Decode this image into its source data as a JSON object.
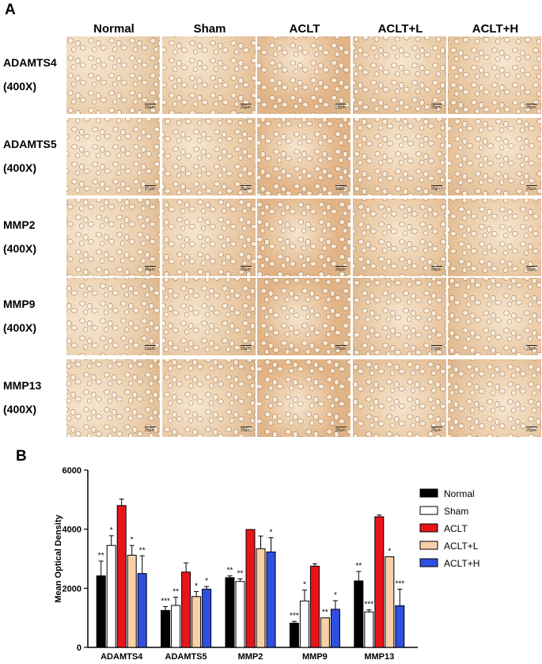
{
  "panel_a": {
    "letter": "A",
    "columns": [
      "Normal",
      "Sham",
      "ACLT",
      "ACLT+L",
      "ACLT+H"
    ],
    "rows": [
      {
        "name": "ADAMTS4",
        "mag": "(400X)"
      },
      {
        "name": "ADAMTS5",
        "mag": "(400X)"
      },
      {
        "name": "MMP2",
        "mag": "(400X)"
      },
      {
        "name": "MMP9",
        "mag": "(400X)"
      },
      {
        "name": "MMP13",
        "mag": "(400X)"
      }
    ],
    "scale_bar_label": "25μm"
  },
  "panel_b": {
    "letter": "B"
  },
  "chart_data": {
    "type": "bar",
    "ylabel": "Mean Optical Density",
    "xlabel": "",
    "ylim": [
      0,
      6000
    ],
    "yticks": [
      0,
      2000,
      4000,
      6000
    ],
    "categories": [
      "ADAMTS4",
      "ADAMTS5",
      "MMP2",
      "MMP9",
      "MMP13"
    ],
    "legend_position": "right",
    "series": [
      {
        "name": "Normal",
        "color": "#000000",
        "values": [
          2420,
          1250,
          2360,
          820,
          2250
        ],
        "errors": [
          500,
          130,
          60,
          60,
          320
        ],
        "annotations": [
          "**",
          "***",
          "**",
          "***",
          "**"
        ]
      },
      {
        "name": "Sham",
        "color": "#ffffff",
        "values": [
          3450,
          1420,
          2230,
          1570,
          1200
        ],
        "errors": [
          330,
          280,
          90,
          370,
          70
        ],
        "annotations": [
          "*",
          "**",
          "**",
          "*",
          "***"
        ]
      },
      {
        "name": "ACLT",
        "color": "#e8141a",
        "values": [
          4800,
          2550,
          3990,
          2750,
          4420
        ],
        "errors": [
          220,
          310,
          0,
          80,
          60
        ],
        "annotations": [
          "",
          "",
          "",
          "",
          ""
        ]
      },
      {
        "name": "ACLT+L",
        "color": "#f7cfa8",
        "values": [
          3120,
          1720,
          3340,
          1000,
          3070
        ],
        "errors": [
          330,
          170,
          430,
          0,
          0
        ],
        "annotations": [
          "*",
          "*",
          "",
          "**",
          "*"
        ]
      },
      {
        "name": "ACLT+H",
        "color": "#2f4fe0",
        "values": [
          2500,
          1970,
          3230,
          1290,
          1410
        ],
        "errors": [
          600,
          90,
          480,
          290,
          560
        ],
        "annotations": [
          "**",
          "*",
          "*",
          "*",
          "***"
        ]
      }
    ]
  }
}
